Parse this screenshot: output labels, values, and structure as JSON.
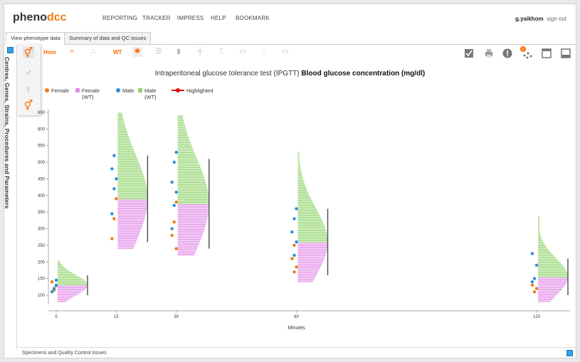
{
  "brand": {
    "pheno": "pheno",
    "dcc": "dcc"
  },
  "nav": {
    "items": [
      "REPORTING",
      "TRACKER",
      "IMPRESS",
      "HELP",
      "BOOKMARK"
    ]
  },
  "user": {
    "name": "g.yaikhom",
    "signout": "sign out"
  },
  "tabs": [
    {
      "label": "View phenotype data",
      "active": true
    },
    {
      "label": "Summary of data and QC issues",
      "active": false
    }
  ],
  "sidebar": {
    "label": "Centres, Genes, Strains, Procedures and Parameters"
  },
  "toolbar": {
    "hom": "Hom",
    "wt": "WT",
    "badge": "0"
  },
  "chart_title": {
    "prefix": "Intraperitoneal glucose tolerance test (IPGTT)",
    "param": "Blood glucose concentration (mg/dl)"
  },
  "legend": {
    "female": "Female",
    "female_wt": "Female (WT)",
    "male": "Male",
    "male_wt": "Male (WT)",
    "highlighted": "Highlighted"
  },
  "colors": {
    "female": "#f07a16",
    "male": "#2a8fe0",
    "female_wt": "#e28ae8",
    "male_wt": "#8fd36b",
    "highlight": "#e01010",
    "accent": "#ff6a00"
  },
  "bottom": {
    "label": "Specimens and Quality Control Issues"
  },
  "chart_data": {
    "type": "scatter",
    "xlabel": "Minutes",
    "ylabel": "",
    "x_ticks": [
      0,
      15,
      30,
      60,
      120
    ],
    "y_ticks": [
      100,
      150,
      200,
      250,
      300,
      350,
      400,
      450,
      500,
      550,
      600,
      650
    ],
    "ylim": [
      80,
      660
    ],
    "series": [
      {
        "name": "Female",
        "values": [
          [
            0,
            128
          ],
          [
            0,
            115
          ],
          [
            0,
            140
          ],
          [
            15,
            390
          ],
          [
            15,
            330
          ],
          [
            15,
            270
          ],
          [
            30,
            380
          ],
          [
            30,
            320
          ],
          [
            30,
            280
          ],
          [
            30,
            240
          ],
          [
            60,
            250
          ],
          [
            60,
            210
          ],
          [
            60,
            185
          ],
          [
            60,
            170
          ],
          [
            120,
            130
          ],
          [
            120,
            120
          ],
          [
            120,
            110
          ]
        ]
      },
      {
        "name": "Male",
        "values": [
          [
            0,
            130
          ],
          [
            0,
            120
          ],
          [
            0,
            110
          ],
          [
            0,
            145
          ],
          [
            15,
            520
          ],
          [
            15,
            480
          ],
          [
            15,
            450
          ],
          [
            15,
            420
          ],
          [
            15,
            345
          ],
          [
            30,
            530
          ],
          [
            30,
            500
          ],
          [
            30,
            440
          ],
          [
            30,
            410
          ],
          [
            30,
            370
          ],
          [
            30,
            300
          ],
          [
            60,
            360
          ],
          [
            60,
            330
          ],
          [
            60,
            290
          ],
          [
            60,
            260
          ],
          [
            60,
            220
          ],
          [
            120,
            225
          ],
          [
            120,
            190
          ],
          [
            120,
            150
          ],
          [
            120,
            140
          ]
        ]
      },
      {
        "name": "Female (WT)",
        "values": [
          [
            0,
            100
          ],
          [
            0,
            160
          ],
          [
            15,
            260
          ],
          [
            15,
            440
          ],
          [
            30,
            230
          ],
          [
            30,
            400
          ],
          [
            60,
            160
          ],
          [
            60,
            300
          ],
          [
            120,
            100
          ],
          [
            120,
            180
          ]
        ]
      },
      {
        "name": "Male (WT)",
        "values": [
          [
            0,
            110
          ],
          [
            0,
            200
          ],
          [
            15,
            330
          ],
          [
            15,
            640
          ],
          [
            30,
            270
          ],
          [
            30,
            640
          ],
          [
            60,
            190
          ],
          [
            60,
            520
          ],
          [
            120,
            120
          ],
          [
            120,
            330
          ]
        ]
      }
    ],
    "grid": false,
    "legend_position": "top-left"
  }
}
